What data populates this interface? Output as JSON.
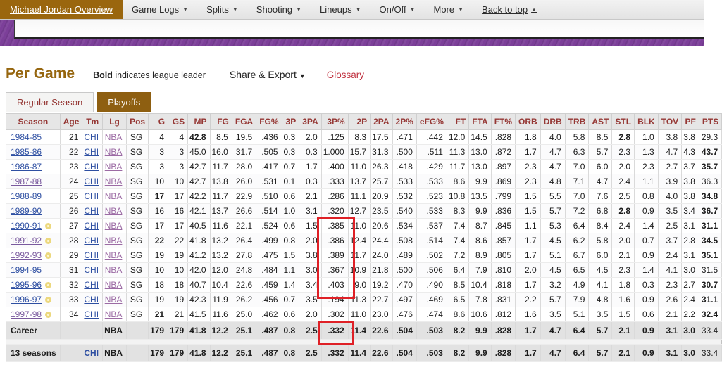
{
  "nav": {
    "active_label": "Michael Jordan Overview",
    "items": [
      {
        "label": "Game Logs",
        "arrow": true
      },
      {
        "label": "Splits",
        "arrow": true
      },
      {
        "label": "Shooting",
        "arrow": true
      },
      {
        "label": "Lineups",
        "arrow": true
      },
      {
        "label": "On/Off",
        "arrow": true
      },
      {
        "label": "More",
        "arrow": true
      }
    ],
    "back_to_top": "Back to top"
  },
  "header": {
    "title": "Per Game",
    "bold_note_strong": "Bold",
    "bold_note_rest": " indicates league leader",
    "share_export": "Share & Export",
    "glossary": "Glossary"
  },
  "tabs": [
    {
      "label": "Regular Season",
      "active": false
    },
    {
      "label": "Playoffs",
      "active": true
    }
  ],
  "table": {
    "columns": [
      "Season",
      "Age",
      "Tm",
      "Lg",
      "Pos",
      "G",
      "GS",
      "MP",
      "FG",
      "FGA",
      "FG%",
      "3P",
      "3PA",
      "3P%",
      "2P",
      "2PA",
      "2P%",
      "eFG%",
      "FT",
      "FTA",
      "FT%",
      "ORB",
      "DRB",
      "TRB",
      "AST",
      "STL",
      "BLK",
      "TOV",
      "PF",
      "PTS"
    ],
    "rows": [
      {
        "season": "1984-85",
        "visited": false,
        "ring": false,
        "age": "21",
        "tm": "CHI",
        "lg": "NBA",
        "pos": "SG",
        "stats": [
          "4",
          "4",
          "42.8",
          "8.5",
          "19.5",
          ".436",
          "0.3",
          "2.0",
          ".125",
          "8.3",
          "17.5",
          ".471",
          ".442",
          "12.0",
          "14.5",
          ".828",
          "1.8",
          "4.0",
          "5.8",
          "8.5",
          "2.8",
          "1.0",
          "3.8",
          "3.8",
          "29.3"
        ],
        "bold": [
          2,
          20
        ]
      },
      {
        "season": "1985-86",
        "visited": false,
        "ring": false,
        "age": "22",
        "tm": "CHI",
        "lg": "NBA",
        "pos": "SG",
        "stats": [
          "3",
          "3",
          "45.0",
          "16.0",
          "31.7",
          ".505",
          "0.3",
          "0.3",
          "1.000",
          "15.7",
          "31.3",
          ".500",
          ".511",
          "11.3",
          "13.0",
          ".872",
          "1.7",
          "4.7",
          "6.3",
          "5.7",
          "2.3",
          "1.3",
          "4.7",
          "4.3",
          "43.7"
        ],
        "bold": [
          24
        ]
      },
      {
        "season": "1986-87",
        "visited": false,
        "ring": false,
        "age": "23",
        "tm": "CHI",
        "lg": "NBA",
        "pos": "SG",
        "stats": [
          "3",
          "3",
          "42.7",
          "11.7",
          "28.0",
          ".417",
          "0.7",
          "1.7",
          ".400",
          "11.0",
          "26.3",
          ".418",
          ".429",
          "11.7",
          "13.0",
          ".897",
          "2.3",
          "4.7",
          "7.0",
          "6.0",
          "2.0",
          "2.3",
          "2.7",
          "3.7",
          "35.7"
        ],
        "bold": [
          24
        ]
      },
      {
        "season": "1987-88",
        "visited": true,
        "ring": false,
        "age": "24",
        "tm": "CHI",
        "lg": "NBA",
        "pos": "SG",
        "stats": [
          "10",
          "10",
          "42.7",
          "13.8",
          "26.0",
          ".531",
          "0.1",
          "0.3",
          ".333",
          "13.7",
          "25.7",
          ".533",
          ".533",
          "8.6",
          "9.9",
          ".869",
          "2.3",
          "4.8",
          "7.1",
          "4.7",
          "2.4",
          "1.1",
          "3.9",
          "3.8",
          "36.3"
        ],
        "bold": []
      },
      {
        "season": "1988-89",
        "visited": false,
        "ring": false,
        "age": "25",
        "tm": "CHI",
        "lg": "NBA",
        "pos": "SG",
        "stats": [
          "17",
          "17",
          "42.2",
          "11.7",
          "22.9",
          ".510",
          "0.6",
          "2.1",
          ".286",
          "11.1",
          "20.9",
          ".532",
          ".523",
          "10.8",
          "13.5",
          ".799",
          "1.5",
          "5.5",
          "7.0",
          "7.6",
          "2.5",
          "0.8",
          "4.0",
          "3.8",
          "34.8"
        ],
        "bold": [
          0,
          24
        ]
      },
      {
        "season": "1989-90",
        "visited": false,
        "ring": false,
        "age": "26",
        "tm": "CHI",
        "lg": "NBA",
        "pos": "SG",
        "stats": [
          "16",
          "16",
          "42.1",
          "13.7",
          "26.6",
          ".514",
          "1.0",
          "3.1",
          ".320",
          "12.7",
          "23.5",
          ".540",
          ".533",
          "8.3",
          "9.9",
          ".836",
          "1.5",
          "5.7",
          "7.2",
          "6.8",
          "2.8",
          "0.9",
          "3.5",
          "3.4",
          "36.7"
        ],
        "bold": [
          20,
          24
        ]
      },
      {
        "season": "1990-91",
        "visited": false,
        "ring": true,
        "age": "27",
        "tm": "CHI",
        "lg": "NBA",
        "pos": "SG",
        "stats": [
          "17",
          "17",
          "40.5",
          "11.6",
          "22.1",
          ".524",
          "0.6",
          "1.5",
          ".385",
          "11.0",
          "20.6",
          ".534",
          ".537",
          "7.4",
          "8.7",
          ".845",
          "1.1",
          "5.3",
          "6.4",
          "8.4",
          "2.4",
          "1.4",
          "2.5",
          "3.1",
          "31.1"
        ],
        "bold": [
          24
        ]
      },
      {
        "season": "1991-92",
        "visited": true,
        "ring": true,
        "age": "28",
        "tm": "CHI",
        "lg": "NBA",
        "pos": "SG",
        "stats": [
          "22",
          "22",
          "41.8",
          "13.2",
          "26.4",
          ".499",
          "0.8",
          "2.0",
          ".386",
          "12.4",
          "24.4",
          ".508",
          ".514",
          "7.4",
          "8.6",
          ".857",
          "1.7",
          "4.5",
          "6.2",
          "5.8",
          "2.0",
          "0.7",
          "3.7",
          "2.8",
          "34.5"
        ],
        "bold": [
          0,
          24
        ]
      },
      {
        "season": "1992-93",
        "visited": true,
        "ring": true,
        "age": "29",
        "tm": "CHI",
        "lg": "NBA",
        "pos": "SG",
        "stats": [
          "19",
          "19",
          "41.2",
          "13.2",
          "27.8",
          ".475",
          "1.5",
          "3.8",
          ".389",
          "11.7",
          "24.0",
          ".489",
          ".502",
          "7.2",
          "8.9",
          ".805",
          "1.7",
          "5.1",
          "6.7",
          "6.0",
          "2.1",
          "0.9",
          "2.4",
          "3.1",
          "35.1"
        ],
        "bold": [
          24
        ]
      },
      {
        "season": "1994-95",
        "visited": false,
        "ring": false,
        "age": "31",
        "tm": "CHI",
        "lg": "NBA",
        "pos": "SG",
        "stats": [
          "10",
          "10",
          "42.0",
          "12.0",
          "24.8",
          ".484",
          "1.1",
          "3.0",
          ".367",
          "10.9",
          "21.8",
          ".500",
          ".506",
          "6.4",
          "7.9",
          ".810",
          "2.0",
          "4.5",
          "6.5",
          "4.5",
          "2.3",
          "1.4",
          "4.1",
          "3.0",
          "31.5"
        ],
        "bold": []
      },
      {
        "season": "1995-96",
        "visited": false,
        "ring": true,
        "age": "32",
        "tm": "CHI",
        "lg": "NBA",
        "pos": "SG",
        "stats": [
          "18",
          "18",
          "40.7",
          "10.4",
          "22.6",
          ".459",
          "1.4",
          "3.4",
          ".403",
          "9.0",
          "19.2",
          ".470",
          ".490",
          "8.5",
          "10.4",
          ".818",
          "1.7",
          "3.2",
          "4.9",
          "4.1",
          "1.8",
          "0.3",
          "2.3",
          "2.7",
          "30.7"
        ],
        "bold": [
          24
        ]
      },
      {
        "season": "1996-97",
        "visited": false,
        "ring": true,
        "age": "33",
        "tm": "CHI",
        "lg": "NBA",
        "pos": "SG",
        "stats": [
          "19",
          "19",
          "42.3",
          "11.9",
          "26.2",
          ".456",
          "0.7",
          "3.5",
          ".194",
          "11.3",
          "22.7",
          ".497",
          ".469",
          "6.5",
          "7.8",
          ".831",
          "2.2",
          "5.7",
          "7.9",
          "4.8",
          "1.6",
          "0.9",
          "2.6",
          "2.4",
          "31.1"
        ],
        "bold": [
          24
        ]
      },
      {
        "season": "1997-98",
        "visited": true,
        "ring": true,
        "age": "34",
        "tm": "CHI",
        "lg": "NBA",
        "pos": "SG",
        "stats": [
          "21",
          "21",
          "41.5",
          "11.6",
          "25.0",
          ".462",
          "0.6",
          "2.0",
          ".302",
          "11.0",
          "23.0",
          ".476",
          ".474",
          "8.6",
          "10.6",
          ".812",
          "1.6",
          "3.5",
          "5.1",
          "3.5",
          "1.5",
          "0.6",
          "2.1",
          "2.2",
          "32.4"
        ],
        "bold": [
          0,
          24
        ]
      }
    ],
    "career_rows": [
      {
        "label": "Career",
        "tm": "",
        "tm_link": false,
        "lg": "NBA",
        "stats": [
          "179",
          "179",
          "41.8",
          "12.2",
          "25.1",
          ".487",
          "0.8",
          "2.5",
          ".332",
          "11.4",
          "22.6",
          ".504",
          ".503",
          "8.2",
          "9.9",
          ".828",
          "1.7",
          "4.7",
          "6.4",
          "5.7",
          "2.1",
          "0.9",
          "3.1",
          "3.0",
          "33.4"
        ],
        "not_bold": [
          24
        ]
      },
      {
        "label": "13 seasons",
        "tm": "CHI",
        "tm_link": true,
        "lg": "NBA",
        "stats": [
          "179",
          "179",
          "41.8",
          "12.2",
          "25.1",
          ".487",
          "0.8",
          "2.5",
          ".332",
          "11.4",
          "22.6",
          ".504",
          ".503",
          "8.2",
          "9.9",
          ".828",
          "1.7",
          "4.7",
          "6.4",
          "5.7",
          "2.1",
          "0.9",
          "3.1",
          "3.0",
          "33.4"
        ],
        "not_bold": [
          24
        ]
      }
    ]
  },
  "highlights": {
    "color": "#df2026",
    "range_box": {
      "row_start": 6,
      "row_end": 10,
      "stat_index": 8
    },
    "career_box": {
      "career_row": 0,
      "stat_index": 8
    }
  },
  "icons": {
    "dropdown": "caret-down-icon",
    "up": "caret-up-icon",
    "championship": "championship-icon"
  },
  "colors": {
    "nav_active_bg": "#9a660e",
    "tab_active_bg": "#8e5f11",
    "purple_band": "#7c3f99",
    "title_brown": "#96660f",
    "header_red": "#953734",
    "link_blue": "#2e4fa2",
    "link_visited": "#7a5a9e",
    "link_league": "#9c6ba4",
    "glossary_red": "#c0313f",
    "highlight_red": "#df2026"
  }
}
